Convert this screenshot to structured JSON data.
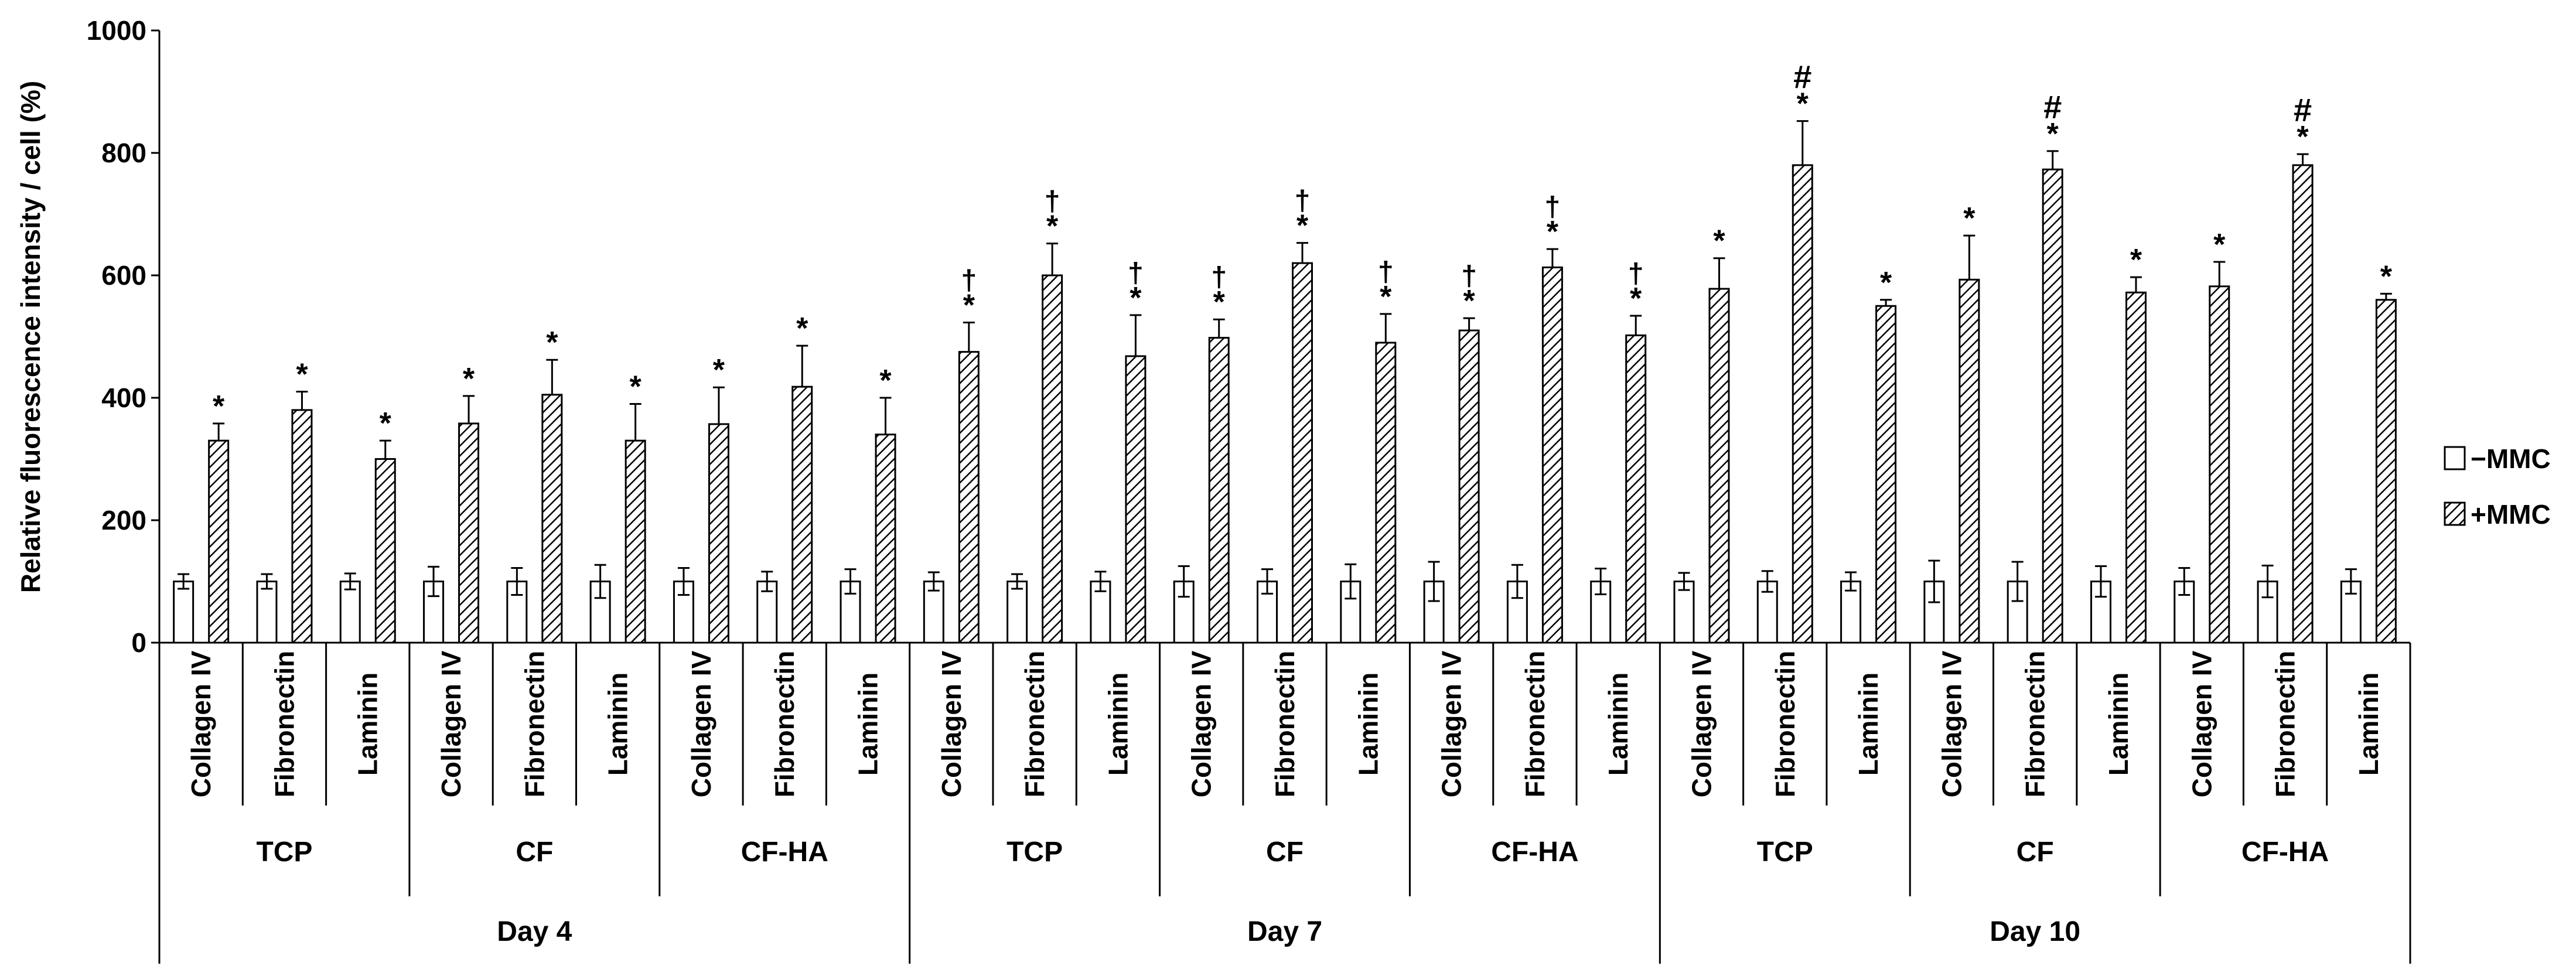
{
  "chart_data": {
    "type": "bar",
    "title": "",
    "xlabel": "",
    "ylabel": "Relative fluorescence intensity / cell (%)",
    "ylim": [
      0,
      1000
    ],
    "yticks": [
      0,
      200,
      400,
      600,
      800,
      1000
    ],
    "grid": false,
    "legend_position": "right",
    "colors": {
      "axis": "#000000",
      "minus_fill": "#ffffff",
      "plus_hatch": "#000000"
    },
    "categories": [
      "Collagen IV",
      "Fibronectin",
      "Laminin",
      "Collagen IV",
      "Fibronectin",
      "Laminin",
      "Collagen IV",
      "Fibronectin",
      "Laminin",
      "Collagen IV",
      "Fibronectin",
      "Laminin",
      "Collagen IV",
      "Fibronectin",
      "Laminin",
      "Collagen IV",
      "Fibronectin",
      "Laminin",
      "Collagen IV",
      "Fibronectin",
      "Laminin",
      "Collagen IV",
      "Fibronectin",
      "Laminin",
      "Collagen IV",
      "Fibronectin",
      "Laminin"
    ],
    "substrate_groups": [
      "TCP",
      "CF",
      "CF-HA",
      "TCP",
      "CF",
      "CF-HA",
      "TCP",
      "CF",
      "CF-HA"
    ],
    "day_groups": [
      "Day 4",
      "Day 7",
      "Day 10"
    ],
    "series": [
      {
        "name": "−MMC",
        "values": [
          100,
          100,
          100,
          100,
          100,
          100,
          100,
          100,
          100,
          100,
          100,
          100,
          100,
          100,
          100,
          100,
          100,
          100,
          100,
          100,
          100,
          100,
          100,
          100,
          100,
          100,
          100
        ],
        "errors": [
          12,
          12,
          13,
          24,
          22,
          27,
          22,
          16,
          20,
          15,
          12,
          16,
          25,
          20,
          28,
          32,
          27,
          21,
          14,
          17,
          15,
          34,
          32,
          25,
          22,
          26,
          20
        ]
      },
      {
        "name": "+MMC",
        "values": [
          330,
          380,
          300,
          358,
          405,
          330,
          357,
          418,
          340,
          475,
          600,
          468,
          498,
          620,
          490,
          510,
          613,
          502,
          578,
          780,
          550,
          593,
          773,
          572,
          582,
          780,
          560
        ],
        "errors": [
          28,
          30,
          30,
          45,
          57,
          60,
          60,
          67,
          60,
          48,
          52,
          67,
          30,
          33,
          47,
          20,
          30,
          32,
          50,
          72,
          10,
          72,
          30,
          25,
          40,
          18,
          10
        ],
        "annotations": [
          "*",
          "*",
          "*",
          "*",
          "*",
          "*",
          "*",
          "*",
          "*",
          "†*",
          "†*",
          "†*",
          "†*",
          "†*",
          "†*",
          "†*",
          "†*",
          "†*",
          "*",
          "#*",
          "*",
          "*",
          "#*",
          "*",
          "*",
          "#*",
          "*"
        ]
      }
    ]
  }
}
